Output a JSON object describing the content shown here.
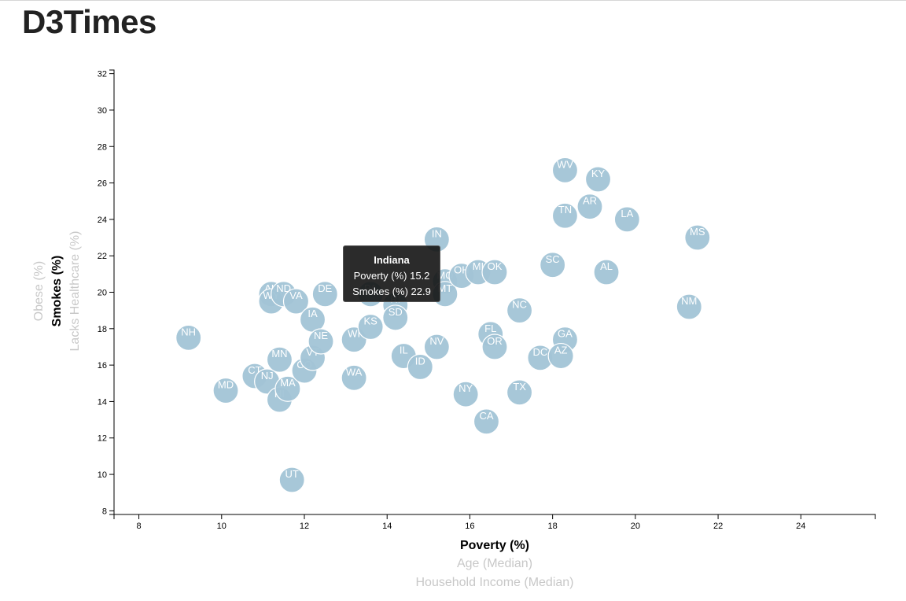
{
  "page": {
    "title": "D3Times"
  },
  "colors": {
    "circle": "#a2c4d6",
    "tooltip_bg": "#141414"
  },
  "tooltip": {
    "title": "Indiana",
    "line1": "Poverty (%) 15.2",
    "line2": "Smokes (%) 22.9"
  },
  "chart_data": {
    "type": "scatter",
    "title": "",
    "xlabel": "Poverty (%)",
    "ylabel": "Smokes (%)",
    "x_axis_options": [
      "Poverty (%)",
      "Age (Median)",
      "Household Income (Median)"
    ],
    "y_axis_options": [
      "Smokes (%)",
      "Lacks Healthcare (%)",
      "Obese (%)"
    ],
    "active_x": "Poverty (%)",
    "active_y": "Smokes (%)",
    "xlim": [
      7.4,
      25.8
    ],
    "ylim": [
      7.8,
      32.2
    ],
    "x_ticks": [
      8,
      10,
      12,
      14,
      16,
      18,
      20,
      22,
      24
    ],
    "y_ticks": [
      8,
      10,
      12,
      14,
      16,
      18,
      20,
      22,
      24,
      26,
      28,
      30,
      32
    ],
    "grid": false,
    "points": [
      {
        "label": "NH",
        "x": 9.2,
        "y": 17.5
      },
      {
        "label": "MD",
        "x": 10.1,
        "y": 14.6
      },
      {
        "label": "CT",
        "x": 10.8,
        "y": 15.4
      },
      {
        "label": "NJ",
        "x": 11.1,
        "y": 15.1
      },
      {
        "label": "AK",
        "x": 11.2,
        "y": 19.9
      },
      {
        "label": "WY",
        "x": 11.2,
        "y": 19.5
      },
      {
        "label": "ND",
        "x": 11.5,
        "y": 19.9
      },
      {
        "label": "MN",
        "x": 11.4,
        "y": 16.3
      },
      {
        "label": "HI",
        "x": 11.4,
        "y": 14.1
      },
      {
        "label": "MA",
        "x": 11.6,
        "y": 14.7
      },
      {
        "label": "UT",
        "x": 11.7,
        "y": 9.7
      },
      {
        "label": "VA",
        "x": 11.8,
        "y": 19.5
      },
      {
        "label": "CO",
        "x": 12.0,
        "y": 15.7
      },
      {
        "label": "IA",
        "x": 12.2,
        "y": 18.5
      },
      {
        "label": "VT",
        "x": 12.2,
        "y": 16.4
      },
      {
        "label": "NE",
        "x": 12.4,
        "y": 17.3
      },
      {
        "label": "DE",
        "x": 12.5,
        "y": 19.9
      },
      {
        "label": "WI",
        "x": 13.2,
        "y": 17.4
      },
      {
        "label": "WA",
        "x": 13.2,
        "y": 15.3
      },
      {
        "label": "KS",
        "x": 13.6,
        "y": 18.1
      },
      {
        "label": "PA",
        "x": 13.6,
        "y": 19.9
      },
      {
        "label": "RI",
        "x": 14.2,
        "y": 19.3
      },
      {
        "label": "SD",
        "x": 14.2,
        "y": 18.6
      },
      {
        "label": "IL",
        "x": 14.4,
        "y": 16.5
      },
      {
        "label": "ID",
        "x": 14.8,
        "y": 15.9
      },
      {
        "label": "NV",
        "x": 15.2,
        "y": 17.0
      },
      {
        "label": "IN",
        "x": 15.2,
        "y": 22.9
      },
      {
        "label": "MO",
        "x": 15.4,
        "y": 20.6
      },
      {
        "label": "MT",
        "x": 15.4,
        "y": 19.9
      },
      {
        "label": "OH",
        "x": 15.8,
        "y": 20.9
      },
      {
        "label": "NY",
        "x": 15.9,
        "y": 14.4
      },
      {
        "label": "MI",
        "x": 16.2,
        "y": 21.1
      },
      {
        "label": "CA",
        "x": 16.4,
        "y": 12.9
      },
      {
        "label": "FL",
        "x": 16.5,
        "y": 17.7
      },
      {
        "label": "OK",
        "x": 16.6,
        "y": 21.1
      },
      {
        "label": "OR",
        "x": 16.6,
        "y": 17.0
      },
      {
        "label": "NC",
        "x": 17.2,
        "y": 19.0
      },
      {
        "label": "TX",
        "x": 17.2,
        "y": 14.5
      },
      {
        "label": "DC",
        "x": 17.7,
        "y": 16.4
      },
      {
        "label": "SC",
        "x": 18.0,
        "y": 21.5
      },
      {
        "label": "GA",
        "x": 18.3,
        "y": 17.4
      },
      {
        "label": "AZ",
        "x": 18.2,
        "y": 16.5
      },
      {
        "label": "TN",
        "x": 18.3,
        "y": 24.2
      },
      {
        "label": "WV",
        "x": 18.3,
        "y": 26.7
      },
      {
        "label": "AR",
        "x": 18.9,
        "y": 24.7
      },
      {
        "label": "KY",
        "x": 19.1,
        "y": 26.2
      },
      {
        "label": "AL",
        "x": 19.3,
        "y": 21.1
      },
      {
        "label": "LA",
        "x": 19.8,
        "y": 24.0
      },
      {
        "label": "NM",
        "x": 21.3,
        "y": 19.2
      },
      {
        "label": "MS",
        "x": 21.5,
        "y": 23.0
      }
    ]
  }
}
